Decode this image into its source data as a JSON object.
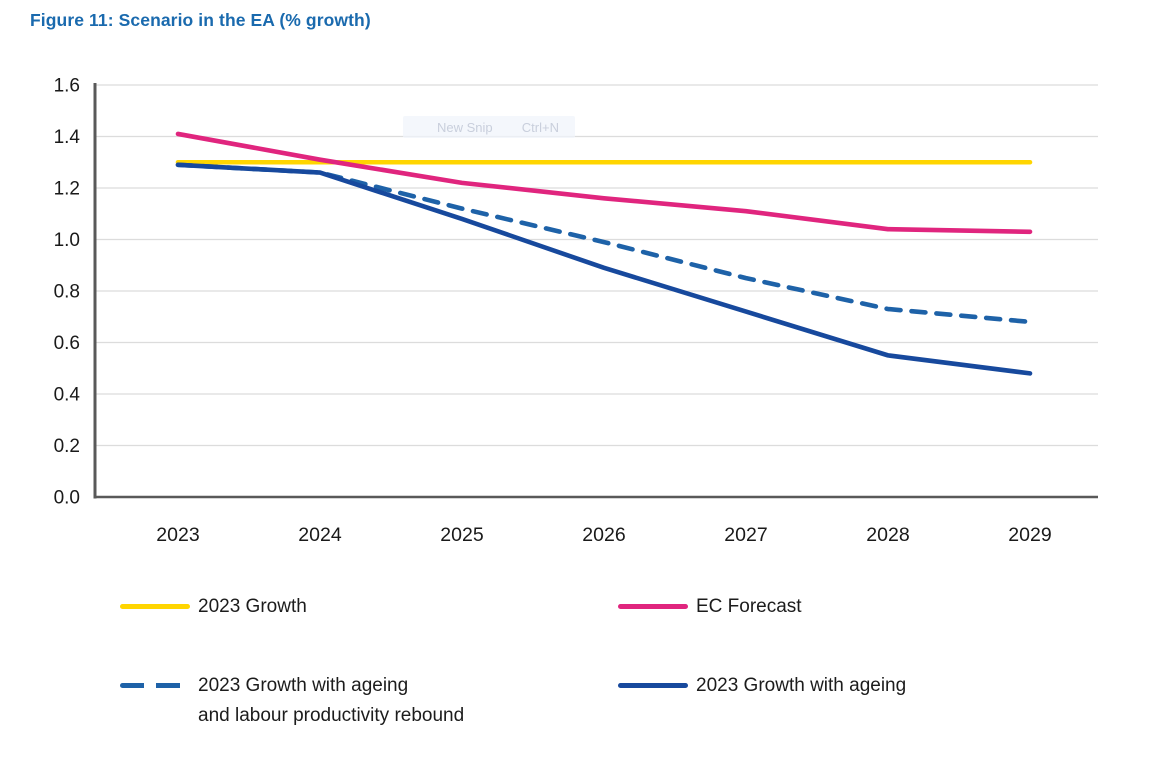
{
  "figure": {
    "title": "Figure 11: Scenario in the EA (% growth)",
    "title_color": "#1a6aae"
  },
  "overlay": {
    "new_snip_label": "New Snip",
    "shortcut_label": "Ctrl+N"
  },
  "chart_data": {
    "type": "line",
    "title": "Figure 11: Scenario in the EA (% growth)",
    "x": [
      2023,
      2024,
      2025,
      2026,
      2027,
      2028,
      2029
    ],
    "x_ticks": [
      "2023",
      "2024",
      "2025",
      "2026",
      "2027",
      "2028",
      "2029"
    ],
    "y_ticks": [
      "1.6",
      "1.4",
      "1.2",
      "1.0",
      "0.8",
      "0.6",
      "0.4",
      "0.2",
      "0.0"
    ],
    "ylim": [
      0.0,
      1.6
    ],
    "ytick_step": 0.2,
    "grid": "horizontal-only",
    "legend_position": "bottom",
    "series": [
      {
        "name": "2023 Growth",
        "color": "#FFD500",
        "style": "solid",
        "values": [
          1.3,
          1.3,
          1.3,
          1.3,
          1.3,
          1.3,
          1.3
        ]
      },
      {
        "name": "EC Forecast",
        "color": "#E0257E",
        "style": "solid",
        "values": [
          1.41,
          1.31,
          1.22,
          1.16,
          1.11,
          1.04,
          1.03
        ]
      },
      {
        "name": "2023 Growth with ageing and labour productivity rebound",
        "color": "#1E62A8",
        "style": "dashed",
        "values": [
          1.29,
          1.26,
          1.12,
          0.99,
          0.85,
          0.73,
          0.68
        ]
      },
      {
        "name": "2023 Growth with ageing",
        "color": "#17499D",
        "style": "solid",
        "values": [
          1.29,
          1.26,
          1.08,
          0.89,
          0.72,
          0.55,
          0.48
        ]
      }
    ]
  },
  "legend": {
    "items": [
      {
        "label": "2023 Growth",
        "style": "solid",
        "color": "#FFD500"
      },
      {
        "label": "EC Forecast",
        "style": "solid",
        "color": "#E0257E"
      },
      {
        "label": "2023 Growth with ageing\nand labour productivity rebound",
        "style": "dashed",
        "color": "#1E62A8"
      },
      {
        "label": "2023 Growth with ageing",
        "style": "solid",
        "color": "#17499D"
      }
    ]
  }
}
